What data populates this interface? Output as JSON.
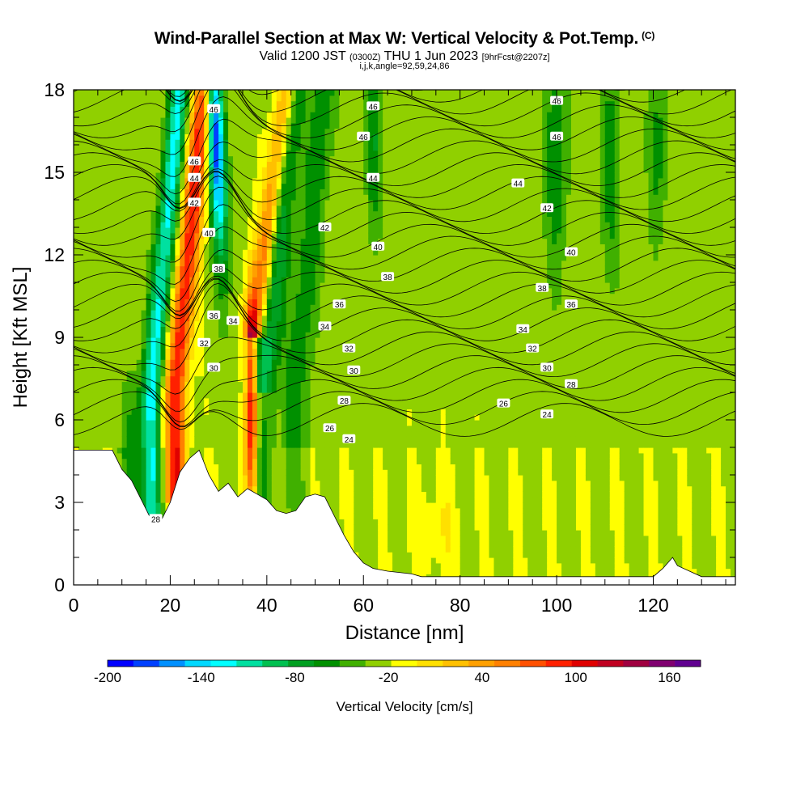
{
  "title": {
    "main": "Wind-Parallel Section at Max W: Vertical Velocity & Pot.Temp.",
    "copyright_mark": "(C)",
    "sub_lead": "Valid 1200 JST",
    "sub_utc": "(0300Z)",
    "sub_date": "THU 1 Jun 2023",
    "sub_fcst": "[9hrFcst@2207z]",
    "params": "i,j,k,angle=92,59,24,86"
  },
  "chart_data": {
    "type": "heatmap",
    "xlabel": "Distance [nm]",
    "ylabel": "Height [Kft MSL]",
    "xlim": [
      0,
      137
    ],
    "ylim": [
      0,
      18
    ],
    "x_ticks": [
      0,
      20,
      40,
      60,
      80,
      100,
      120
    ],
    "y_ticks": [
      0,
      3,
      6,
      9,
      12,
      15,
      18
    ],
    "colorbar": {
      "title": "Vertical Velocity [cm/s]",
      "range": [
        -200,
        180
      ],
      "step": 20,
      "tick_values": [
        -200,
        -140,
        -80,
        -20,
        40,
        100,
        160
      ],
      "colors": [
        "#0000ff",
        "#0040ff",
        "#0090ff",
        "#00d8ff",
        "#00ffff",
        "#00e0a0",
        "#00c050",
        "#00a020",
        "#009000",
        "#40b000",
        "#90d000",
        "#ffff00",
        "#ffe000",
        "#ffc000",
        "#ffa000",
        "#ff8000",
        "#ff5000",
        "#ff2000",
        "#e00000",
        "#c00020",
        "#a00040",
        "#800070",
        "#600090"
      ]
    },
    "terrain_kft": [
      [
        0,
        4.9
      ],
      [
        8,
        4.9
      ],
      [
        10,
        4.2
      ],
      [
        12,
        3.8
      ],
      [
        14,
        3.1
      ],
      [
        16,
        2.4
      ],
      [
        18,
        2.3
      ],
      [
        20,
        3.0
      ],
      [
        22,
        4.1
      ],
      [
        24,
        4.6
      ],
      [
        26,
        4.9
      ],
      [
        28,
        4.0
      ],
      [
        30,
        3.4
      ],
      [
        32,
        3.7
      ],
      [
        34,
        3.2
      ],
      [
        36,
        3.5
      ],
      [
        38,
        3.3
      ],
      [
        40,
        3.1
      ],
      [
        42,
        2.7
      ],
      [
        44,
        2.6
      ],
      [
        46,
        2.7
      ],
      [
        48,
        3.2
      ],
      [
        50,
        3.3
      ],
      [
        52,
        3.2
      ],
      [
        54,
        2.5
      ],
      [
        56,
        1.8
      ],
      [
        58,
        1.2
      ],
      [
        60,
        0.8
      ],
      [
        62,
        0.6
      ],
      [
        65,
        0.5
      ],
      [
        70,
        0.4
      ],
      [
        72,
        0.3
      ],
      [
        120,
        0.3
      ],
      [
        122,
        0.6
      ],
      [
        124,
        1.0
      ],
      [
        125,
        0.7
      ],
      [
        130,
        0.3
      ],
      [
        137,
        0.3
      ]
    ],
    "theta_contour_labels": [
      {
        "value": "46",
        "x": 62,
        "y": 17.4
      },
      {
        "value": "46",
        "x": 100,
        "y": 17.6
      },
      {
        "value": "46",
        "x": 60,
        "y": 16.3
      },
      {
        "value": "46",
        "x": 100,
        "y": 16.3
      },
      {
        "value": "46",
        "x": 25,
        "y": 15.4
      },
      {
        "value": "46",
        "x": 29,
        "y": 17.3
      },
      {
        "value": "44",
        "x": 62,
        "y": 14.8
      },
      {
        "value": "44",
        "x": 92,
        "y": 14.6
      },
      {
        "value": "44",
        "x": 25,
        "y": 14.8
      },
      {
        "value": "42",
        "x": 25,
        "y": 13.9
      },
      {
        "value": "42",
        "x": 52,
        "y": 13.0
      },
      {
        "value": "42",
        "x": 98,
        "y": 13.7
      },
      {
        "value": "40",
        "x": 28,
        "y": 12.8
      },
      {
        "value": "40",
        "x": 63,
        "y": 12.3
      },
      {
        "value": "40",
        "x": 103,
        "y": 12.1
      },
      {
        "value": "38",
        "x": 30,
        "y": 11.5
      },
      {
        "value": "38",
        "x": 65,
        "y": 11.2
      },
      {
        "value": "38",
        "x": 97,
        "y": 10.8
      },
      {
        "value": "36",
        "x": 29,
        "y": 9.8
      },
      {
        "value": "36",
        "x": 55,
        "y": 10.2
      },
      {
        "value": "36",
        "x": 103,
        "y": 10.2
      },
      {
        "value": "34",
        "x": 33,
        "y": 9.6
      },
      {
        "value": "34",
        "x": 52,
        "y": 9.4
      },
      {
        "value": "34",
        "x": 93,
        "y": 9.3
      },
      {
        "value": "32",
        "x": 27,
        "y": 8.8
      },
      {
        "value": "32",
        "x": 57,
        "y": 8.6
      },
      {
        "value": "32",
        "x": 95,
        "y": 8.6
      },
      {
        "value": "30",
        "x": 29,
        "y": 7.9
      },
      {
        "value": "30",
        "x": 58,
        "y": 7.8
      },
      {
        "value": "30",
        "x": 98,
        "y": 7.9
      },
      {
        "value": "28",
        "x": 56,
        "y": 6.7
      },
      {
        "value": "28",
        "x": 103,
        "y": 7.3
      },
      {
        "value": "26",
        "x": 53,
        "y": 5.7
      },
      {
        "value": "26",
        "x": 89,
        "y": 6.6
      },
      {
        "value": "24",
        "x": 57,
        "y": 5.3
      },
      {
        "value": "24",
        "x": 98,
        "y": 6.2
      },
      {
        "value": "28",
        "x": 17,
        "y": 2.4
      }
    ]
  }
}
